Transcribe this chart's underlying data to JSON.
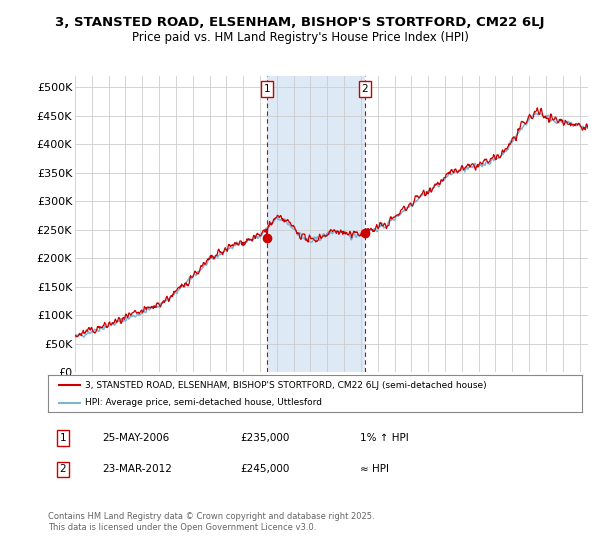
{
  "title_line1": "3, STANSTED ROAD, ELSENHAM, BISHOP'S STORTFORD, CM22 6LJ",
  "title_line2": "Price paid vs. HM Land Registry's House Price Index (HPI)",
  "ylim": [
    0,
    520000
  ],
  "yticks": [
    0,
    50000,
    100000,
    150000,
    200000,
    250000,
    300000,
    350000,
    400000,
    450000,
    500000
  ],
  "ytick_labels": [
    "£0",
    "£50K",
    "£100K",
    "£150K",
    "£200K",
    "£250K",
    "£300K",
    "£350K",
    "£400K",
    "£450K",
    "£500K"
  ],
  "hpi_color": "#7fb3d3",
  "price_color": "#cc0000",
  "shade_color": "#ddeaf5",
  "marker1_x": 2006.4,
  "marker1_y": 235000,
  "marker2_x": 2012.23,
  "marker2_y": 245000,
  "legend_property": "3, STANSTED ROAD, ELSENHAM, BISHOP'S STORTFORD, CM22 6LJ (semi-detached house)",
  "legend_hpi": "HPI: Average price, semi-detached house, Uttlesford",
  "table_row1": [
    "1",
    "25-MAY-2006",
    "£235,000",
    "1% ↑ HPI"
  ],
  "table_row2": [
    "2",
    "23-MAR-2012",
    "£245,000",
    "≈ HPI"
  ],
  "footer": "Contains HM Land Registry data © Crown copyright and database right 2025.\nThis data is licensed under the Open Government Licence v3.0.",
  "background_color": "#ffffff",
  "plot_bg_color": "#ffffff",
  "grid_color": "#cccccc",
  "xlim_start": 1995,
  "xlim_end": 2025.5
}
